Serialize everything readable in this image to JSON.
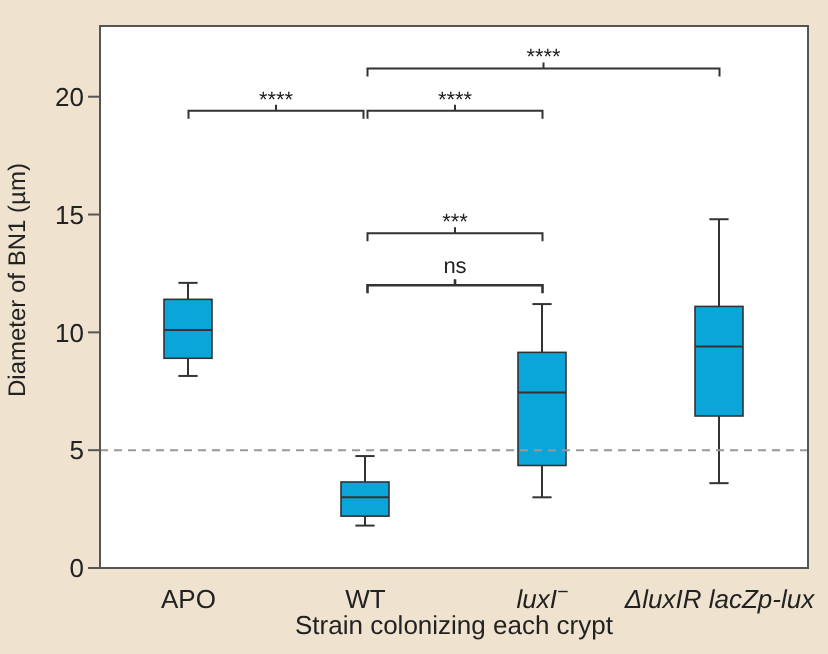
{
  "chart_data": {
    "type": "box",
    "xlabel": "Strain colonizing each crypt",
    "ylabel": "Diameter of BN1 (µm)",
    "categories": [
      "APO",
      "WT",
      "luxI$^{−}$",
      "ΔluxIR lacZp-lux"
    ],
    "color": "#0ba6d9",
    "boxes": [
      {
        "low": 8.15,
        "q1": 8.9,
        "median": 10.1,
        "q3": 11.4,
        "high": 12.1
      },
      {
        "low": 1.8,
        "q1": 2.2,
        "median": 3.0,
        "q3": 3.65,
        "high": 4.75
      },
      {
        "low": 3.0,
        "q1": 4.35,
        "median": 7.45,
        "q3": 9.15,
        "high": 11.2
      },
      {
        "low": 3.6,
        "q1": 6.45,
        "median": 9.4,
        "q3": 11.1,
        "high": 14.8
      }
    ],
    "ylim": [
      0,
      23
    ],
    "yticks": [
      0,
      5,
      10,
      15,
      20
    ],
    "grid": false,
    "ref_lines": [
      {
        "axis": "y",
        "value": 5,
        "color": "#999999",
        "line_style": "dashed"
      }
    ],
    "annotations": [
      "****",
      "****",
      "****",
      "***",
      "ns"
    ]
  }
}
